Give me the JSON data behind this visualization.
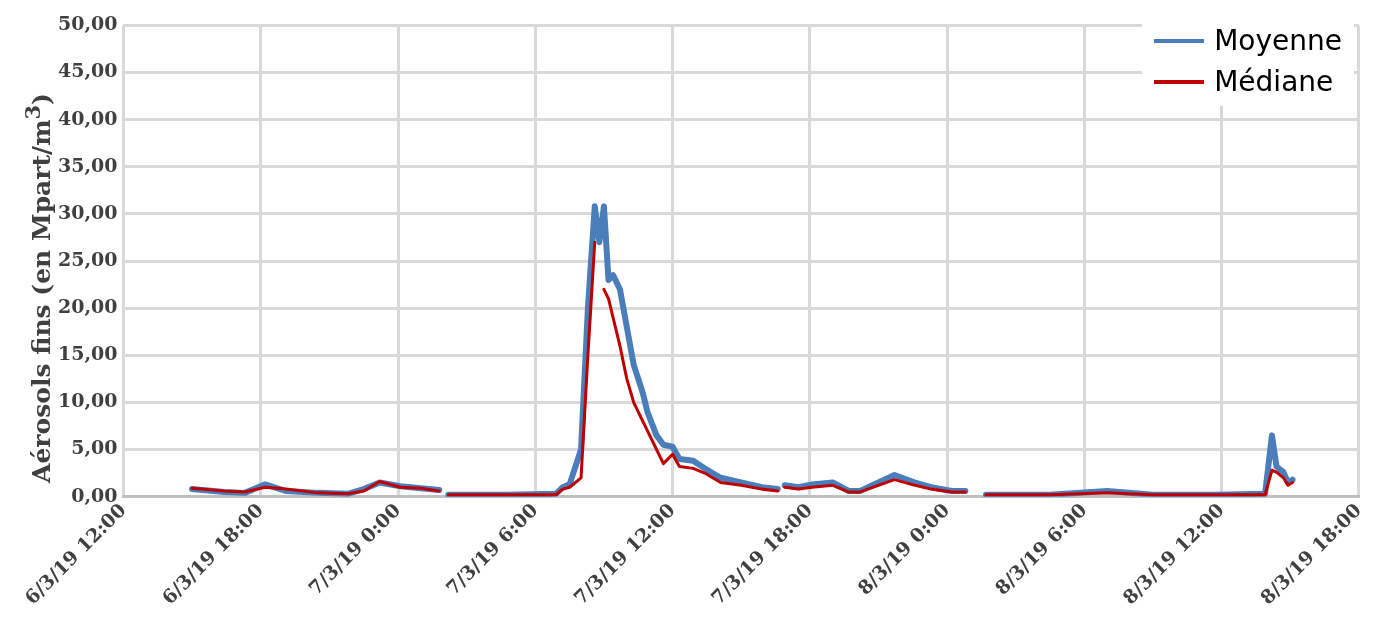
{
  "chart_data": {
    "type": "line",
    "ylabel": "Aérosols fins (en  Mpart/m$^{3}$)",
    "x": [
      "--03-06T15:00",
      "--03-06T16:24",
      "--03-06T17:18",
      "--03-06T18:12",
      "--03-06T19:06",
      "--03-06T20:30",
      "--03-06T21:48",
      "--03-06T22:30",
      "--03-06T23:12",
      "--03-07T00:06",
      "--03-07T01:00",
      "--03-07T01:48",
      "--03-07T02:00",
      "--03-07T02:12",
      "--03-07T04:36",
      "--03-07T06:54",
      "--03-07T07:12",
      "--03-07T07:30",
      "--03-07T08:00",
      "--03-07T08:18",
      "--03-07T08:36",
      "--03-07T08:48",
      "--03-07T09:00",
      "--03-07T09:12",
      "--03-07T09:24",
      "--03-07T09:42",
      "--03-07T10:00",
      "--03-07T10:18",
      "--03-07T10:42",
      "--03-07T10:54",
      "--03-07T11:18",
      "--03-07T11:36",
      "--03-07T12:00",
      "--03-07T12:18",
      "--03-07T12:54",
      "--03-07T13:24",
      "--03-07T14:06",
      "--03-07T15:00",
      "--03-07T15:54",
      "--03-07T16:36",
      "--03-07T16:45",
      "--03-07T16:54",
      "--03-07T17:30",
      "--03-07T18:06",
      "--03-07T19:00",
      "--03-07T19:42",
      "--03-07T20:12",
      "--03-07T21:42",
      "--03-07T22:36",
      "--03-07T23:18",
      "--03-08T00:12",
      "--03-08T00:48",
      "--03-08T01:12",
      "--03-08T01:42",
      "--03-08T04:30",
      "--03-08T07:00",
      "--03-08T09:00",
      "--03-08T11:42",
      "--03-08T13:54",
      "--03-08T14:12",
      "--03-08T14:24",
      "--03-08T14:42",
      "--03-08T14:54",
      "--03-08T15:06"
    ],
    "series": [
      {
        "name": "Médiane",
        "color": "#c00000",
        "values": [
          0.9,
          0.6,
          0.5,
          1.0,
          0.8,
          0.4,
          0.3,
          0.6,
          1.6,
          1.0,
          0.9,
          0.6,
          null,
          0.2,
          0.2,
          0.2,
          0.8,
          1.0,
          2.0,
          15.0,
          27.0,
          null,
          22.0,
          21.0,
          19.0,
          16.0,
          12.5,
          10.0,
          8.0,
          7.0,
          5.0,
          3.5,
          4.5,
          3.2,
          3.0,
          2.5,
          1.5,
          1.2,
          0.8,
          0.6,
          null,
          1.0,
          0.8,
          1.0,
          1.2,
          0.5,
          0.5,
          1.8,
          1.2,
          0.8,
          0.5,
          0.5,
          null,
          0.2,
          0.2,
          0.4,
          0.2,
          0.2,
          0.2,
          2.8,
          2.6,
          2.0,
          1.2,
          1.5
        ]
      },
      {
        "name": "Moyenne",
        "color": "#4a7ebb",
        "values": [
          0.8,
          0.5,
          0.4,
          1.3,
          0.6,
          0.4,
          0.3,
          0.8,
          1.5,
          1.1,
          0.9,
          0.7,
          null,
          0.2,
          0.2,
          0.3,
          1.0,
          1.3,
          5.0,
          20.0,
          30.8,
          27.0,
          30.8,
          23.0,
          23.5,
          22.0,
          18.0,
          14.0,
          11.0,
          9.0,
          6.5,
          5.5,
          5.3,
          4.0,
          3.8,
          3.0,
          2.0,
          1.5,
          1.0,
          0.8,
          null,
          1.2,
          1.0,
          1.3,
          1.5,
          0.6,
          0.6,
          2.3,
          1.5,
          1.0,
          0.6,
          0.6,
          null,
          0.2,
          0.2,
          0.6,
          0.2,
          0.2,
          0.3,
          6.5,
          3.2,
          2.6,
          1.5,
          1.8
        ]
      }
    ],
    "xlim": [
      "--03-06T12:00",
      "--03-08T18:00"
    ],
    "xticks": [
      {
        "value": "--03-06T12:00",
        "label": "6/3/19 12:00"
      },
      {
        "value": "--03-06T18:00",
        "label": "6/3/19 18:00"
      },
      {
        "value": "--03-07T00:00",
        "label": "7/3/19 0:00"
      },
      {
        "value": "--03-07T06:00",
        "label": "7/3/19 6:00"
      },
      {
        "value": "--03-07T12:00",
        "label": "7/3/19 12:00"
      },
      {
        "value": "--03-07T18:00",
        "label": "7/3/19 18:00"
      },
      {
        "value": "--03-08T00:00",
        "label": "8/3/19 0:00"
      },
      {
        "value": "--03-08T06:00",
        "label": "8/3/19 6:00"
      },
      {
        "value": "--03-08T12:00",
        "label": "8/3/19 12:00"
      },
      {
        "value": "--03-08T18:00",
        "label": "8/3/19 18:00"
      }
    ],
    "ylim": [
      0,
      50
    ],
    "yticks": [
      {
        "value": 0,
        "label": "0,00"
      },
      {
        "value": 5,
        "label": "5,00"
      },
      {
        "value": 10,
        "label": "10,00"
      },
      {
        "value": 15,
        "label": "15,00"
      },
      {
        "value": 20,
        "label": "20,00"
      },
      {
        "value": 25,
        "label": "25,00"
      },
      {
        "value": 30,
        "label": "30,00"
      },
      {
        "value": 35,
        "label": "35,00"
      },
      {
        "value": 40,
        "label": "40,00"
      },
      {
        "value": 45,
        "label": "45,00"
      },
      {
        "value": 50,
        "label": "50,00"
      }
    ],
    "grid": true,
    "legend": "top right",
    "marker": "none",
    "line_style": "solid"
  }
}
